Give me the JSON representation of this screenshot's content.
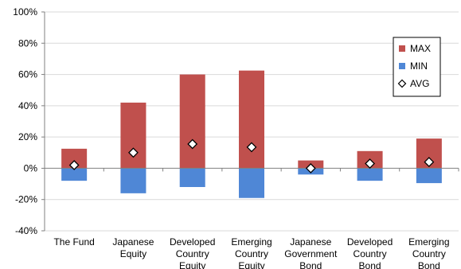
{
  "chart_data": {
    "type": "bar",
    "categories": [
      [
        "The Fund"
      ],
      [
        "Japanese",
        "Equity"
      ],
      [
        "Developed",
        "Country",
        "Equity"
      ],
      [
        "Emerging",
        "Country",
        "Equity"
      ],
      [
        "Japanese",
        "Government",
        "Bond"
      ],
      [
        "Developed",
        "Country",
        "Bond"
      ],
      [
        "Emerging",
        "Country",
        "Bond"
      ]
    ],
    "series": [
      {
        "name": "MAX",
        "values": [
          12.5,
          42,
          60,
          62.5,
          5,
          11,
          19
        ],
        "color": "#c0504d"
      },
      {
        "name": "MIN",
        "values": [
          -8,
          -16,
          -12,
          -19,
          -4,
          -8,
          -9.5
        ],
        "color": "#4f87d6"
      },
      {
        "name": "AVG",
        "values": [
          2,
          10,
          15.5,
          13.5,
          0,
          3,
          4
        ],
        "marker": "diamond"
      }
    ],
    "ylim": [
      -40,
      100
    ],
    "yticks": [
      "100%",
      "80%",
      "60%",
      "40%",
      "20%",
      "0%",
      "-20%",
      "-40%"
    ],
    "ytick_values": [
      100,
      80,
      60,
      40,
      20,
      0,
      -20,
      -40
    ],
    "legend": {
      "position": "right",
      "labels": [
        "MAX",
        "MIN",
        "AVG"
      ]
    },
    "grid": true
  }
}
